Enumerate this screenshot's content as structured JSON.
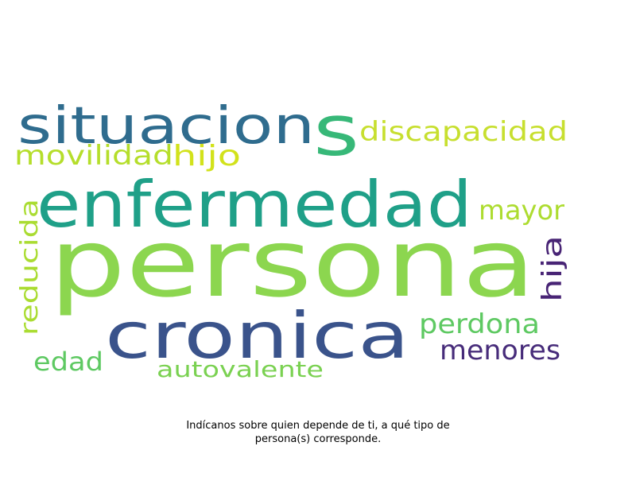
{
  "chart_data": {
    "type": "wordcloud",
    "words": [
      {
        "text": "persona",
        "weight": 100,
        "color": "#8cd64f"
      },
      {
        "text": "enfermedad",
        "weight": 60,
        "color": "#1fa088"
      },
      {
        "text": "cronica",
        "weight": 55,
        "color": "#3a538b"
      },
      {
        "text": "situacion",
        "weight": 42,
        "color": "#2f6c8e"
      },
      {
        "text": "s",
        "weight": 55,
        "color": "#37b878"
      },
      {
        "text": "discapacidad",
        "weight": 22,
        "color": "#c7df2f"
      },
      {
        "text": "movilidad",
        "weight": 20,
        "color": "#b5de2b"
      },
      {
        "text": "hijo",
        "weight": 22,
        "color": "#d2e21b"
      },
      {
        "text": "mayor",
        "weight": 22,
        "color": "#addc30"
      },
      {
        "text": "reducida",
        "weight": 20,
        "color": "#aadc32"
      },
      {
        "text": "hija",
        "weight": 22,
        "color": "#482475"
      },
      {
        "text": "perdona",
        "weight": 22,
        "color": "#5ec962"
      },
      {
        "text": "menores",
        "weight": 22,
        "color": "#472c7a"
      },
      {
        "text": "edad",
        "weight": 20,
        "color": "#5ec962"
      },
      {
        "text": "autovalente",
        "weight": 18,
        "color": "#7ad151"
      }
    ]
  },
  "caption": {
    "line1": "Indícanos sobre quien depende de ti, a qué tipo de",
    "line2": "persona(s) corresponde."
  }
}
